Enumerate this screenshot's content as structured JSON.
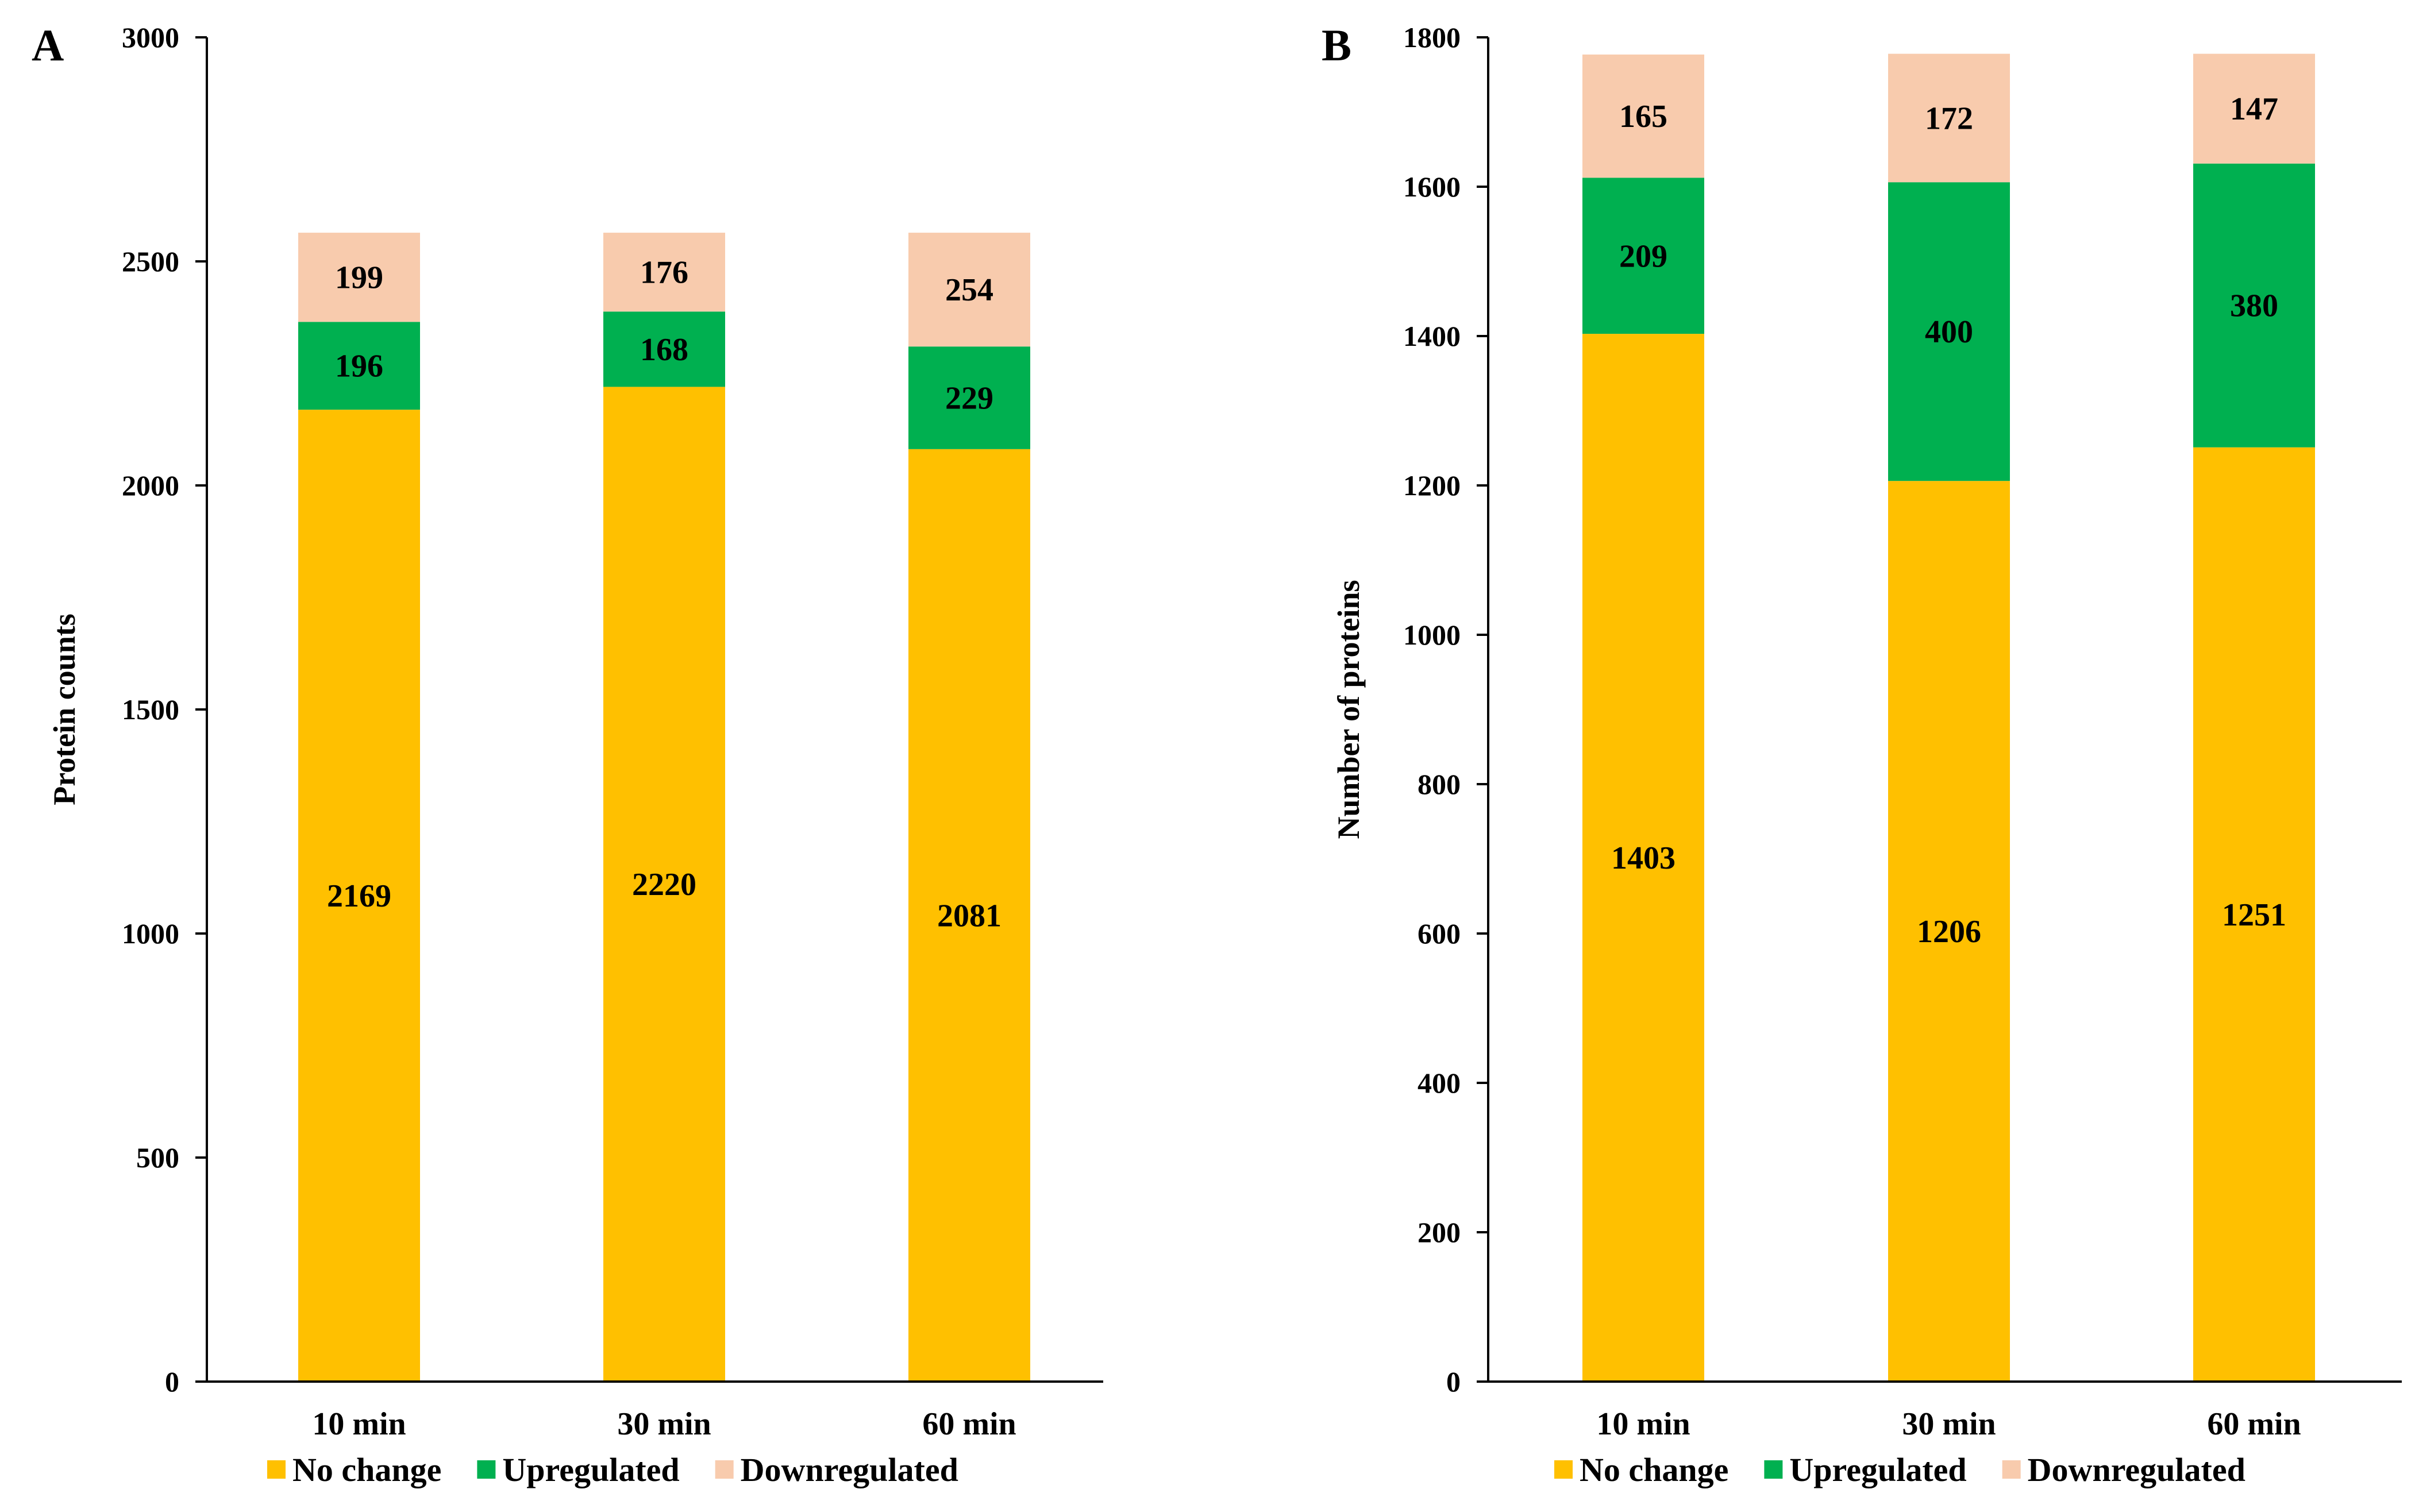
{
  "chart_data": [
    {
      "panel": "A",
      "type": "bar",
      "stacked": true,
      "categories": [
        "10 min",
        "30 min",
        "60 min"
      ],
      "series": [
        {
          "name": "No change",
          "color": "#FFC000",
          "values": [
            2169,
            2220,
            2081
          ]
        },
        {
          "name": "Upregulated",
          "color": "#00B050",
          "values": [
            196,
            168,
            229
          ]
        },
        {
          "name": "Downregulated",
          "color": "#F8CBAD",
          "values": [
            199,
            176,
            254
          ]
        }
      ],
      "ylabel": "Protein counts",
      "xlabel": "",
      "ylim": [
        0,
        3000
      ],
      "yticks": [
        0,
        500,
        1000,
        1500,
        2000,
        2500,
        3000
      ],
      "legend": "bottom"
    },
    {
      "panel": "B",
      "type": "bar",
      "stacked": true,
      "categories": [
        "10 min",
        "30 min",
        "60 min"
      ],
      "series": [
        {
          "name": "No change",
          "color": "#FFC000",
          "values": [
            1403,
            1206,
            1251
          ]
        },
        {
          "name": "Upregulated",
          "color": "#00B050",
          "values": [
            209,
            400,
            380
          ]
        },
        {
          "name": "Downregulated",
          "color": "#F8CBAD",
          "values": [
            165,
            172,
            147
          ]
        }
      ],
      "ylabel": "Number of proteins",
      "xlabel": "",
      "ylim": [
        0,
        1800
      ],
      "yticks": [
        0,
        200,
        400,
        600,
        800,
        1000,
        1200,
        1400,
        1600,
        1800
      ],
      "legend": "bottom"
    }
  ]
}
